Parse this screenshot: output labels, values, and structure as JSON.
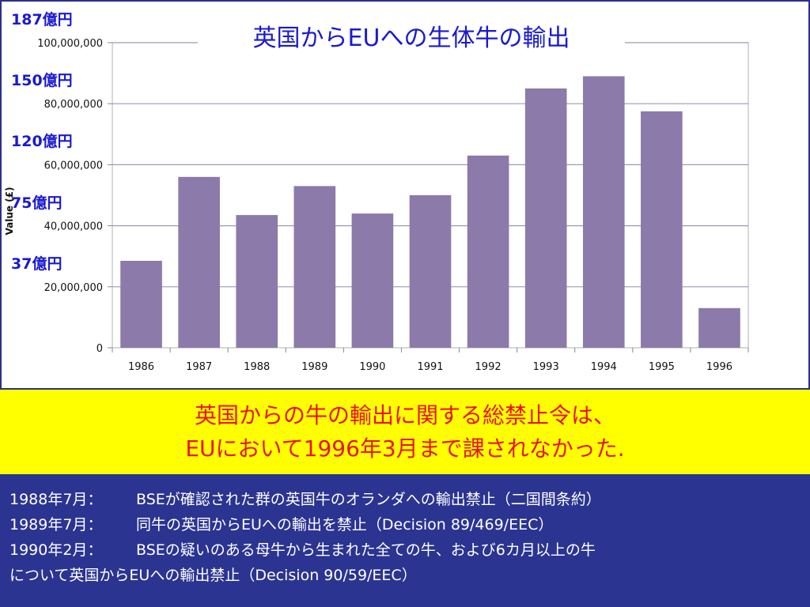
{
  "chart_data": {
    "type": "bar",
    "title": "英国からEUへの生体牛の輸出",
    "ylabel": "Value (£)",
    "xlabel": "",
    "categories": [
      "1986",
      "1987",
      "1988",
      "1989",
      "1990",
      "1991",
      "1992",
      "1993",
      "1994",
      "1995",
      "1996"
    ],
    "values": [
      28500000,
      56000000,
      43500000,
      53000000,
      44000000,
      50000000,
      63000000,
      85000000,
      89000000,
      77500000,
      13000000
    ],
    "ylim": [
      0,
      100000000
    ],
    "yticks": [
      0,
      20000000,
      40000000,
      60000000,
      80000000,
      100000000
    ],
    "ytick_labels": [
      "0",
      "20,000,000",
      "40,000,000",
      "60,000,000",
      "80,000,000",
      "100,000,000"
    ],
    "grid": true,
    "bar_color": "#8b7aaa",
    "yen_annotations": [
      {
        "label": "187億円",
        "value": 100000000,
        "pos": "above"
      },
      {
        "label": "150億円",
        "value": 80000000,
        "pos": "above"
      },
      {
        "label": "120億円",
        "value": 60000000,
        "pos": "above"
      },
      {
        "label": "75億円",
        "value": 40000000,
        "pos": "above"
      },
      {
        "label": "37億円",
        "value": 20000000,
        "pos": "above"
      }
    ]
  },
  "banner": {
    "line1": "英国からの牛の輸出に関する総禁止令は、",
    "line2": "EUにおいて1996年3月まで課されなかった."
  },
  "notes": [
    {
      "date": "1988年7月：",
      "text": "BSEが確認された群の英国牛のオランダへの輸出禁止（二国間条約）"
    },
    {
      "date": "1989年7月：",
      "text": "同牛の英国からEUへの輸出を禁止（Decision 89/469/EEC）"
    },
    {
      "date": "1990年2月：",
      "text": "BSEの疑いのある母牛から生まれた全ての牛、および6カ月以上の牛"
    },
    {
      "date": "",
      "text": "について英国からEUへの輸出禁止（Decision 90/59/EEC）"
    }
  ],
  "colors": {
    "banner_bg": "#ffff00",
    "banner_text": "#e8141e",
    "notes_bg": "#2b3490",
    "yen_text": "#1a1ad0",
    "title_text": "#1a1ad0"
  }
}
